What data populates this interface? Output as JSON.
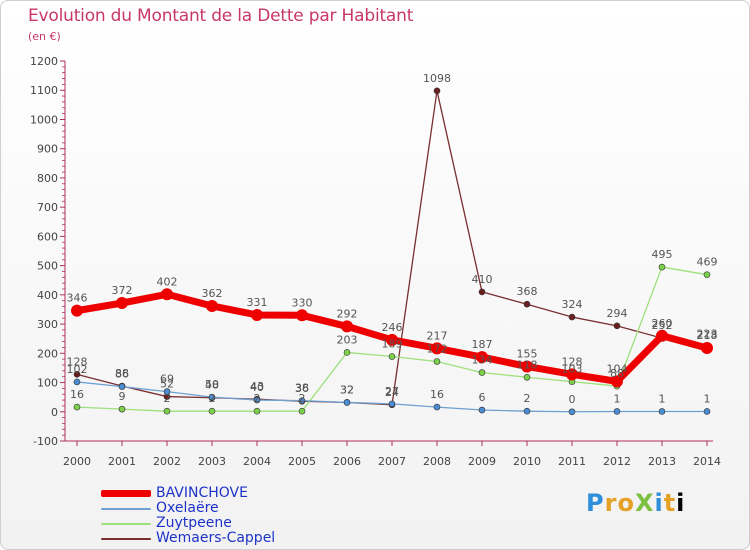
{
  "header": {
    "title": "Evolution du Montant de la Dette par Habitant",
    "unit": "(en €)"
  },
  "logo": {
    "text": "ProXiti"
  },
  "chart_data": {
    "type": "line",
    "x": [
      "2000",
      "2001",
      "2002",
      "2003",
      "2004",
      "2005",
      "2006",
      "2007",
      "2008",
      "2009",
      "2010",
      "2011",
      "2012",
      "2013",
      "2014"
    ],
    "ylim": [
      -100,
      1200
    ],
    "yticks": [
      -100,
      0,
      100,
      200,
      300,
      400,
      500,
      600,
      700,
      800,
      900,
      1000,
      1100,
      1200
    ],
    "grid": false,
    "legend_position": "bottom-left",
    "series": [
      {
        "name": "BAVINCHOVE",
        "color": "#ee0000",
        "marker": "#ee0000",
        "width": 7,
        "r": 6,
        "values": [
          346,
          372,
          402,
          362,
          331,
          330,
          292,
          246,
          217,
          187,
          155,
          128,
          104,
          260,
          218
        ],
        "labels": [
          "346",
          "372",
          "402",
          "362",
          "331",
          "330",
          "292",
          "246",
          "217",
          "187",
          "155",
          "128",
          "104",
          "260",
          "218"
        ]
      },
      {
        "name": "Oxelaëre",
        "color": "#6ea0d2",
        "marker": "#4c8cd2",
        "width": 1.3,
        "r": 3,
        "values": [
          102,
          86,
          69,
          50,
          40,
          38,
          32,
          27,
          16,
          6,
          2,
          0,
          1,
          1,
          1
        ],
        "labels": [
          "102",
          "86",
          "69",
          "50",
          "40",
          "38",
          "32",
          "27",
          "16",
          "6",
          "2",
          "0",
          "1",
          "1",
          "1"
        ]
      },
      {
        "name": "Zuytpeene",
        "color": "#9ee07a",
        "marker": "#7cd04a",
        "width": 1.3,
        "r": 3,
        "values": [
          16,
          9,
          2,
          2,
          2,
          2,
          203,
          189,
          172,
          134,
          118,
          103,
          88,
          495,
          469
        ],
        "labels": [
          "16",
          "9",
          "2",
          "2",
          "2",
          "2",
          "203",
          "189",
          "172",
          "134",
          "118",
          "103",
          "88",
          "495",
          "469"
        ]
      },
      {
        "name": "Wemaers-Cappel",
        "color": "#7a2f2f",
        "marker": "#6b1f1f",
        "width": 1.3,
        "r": 3,
        "values": [
          128,
          88,
          52,
          48,
          43,
          36,
          32,
          24,
          1098,
          410,
          368,
          324,
          294,
          252,
          223
        ],
        "labels": [
          "128",
          "88",
          "52",
          "48",
          "43",
          "36",
          "32",
          "24",
          "1098",
          "410",
          "368",
          "324",
          "294",
          "252",
          "223"
        ]
      }
    ]
  }
}
